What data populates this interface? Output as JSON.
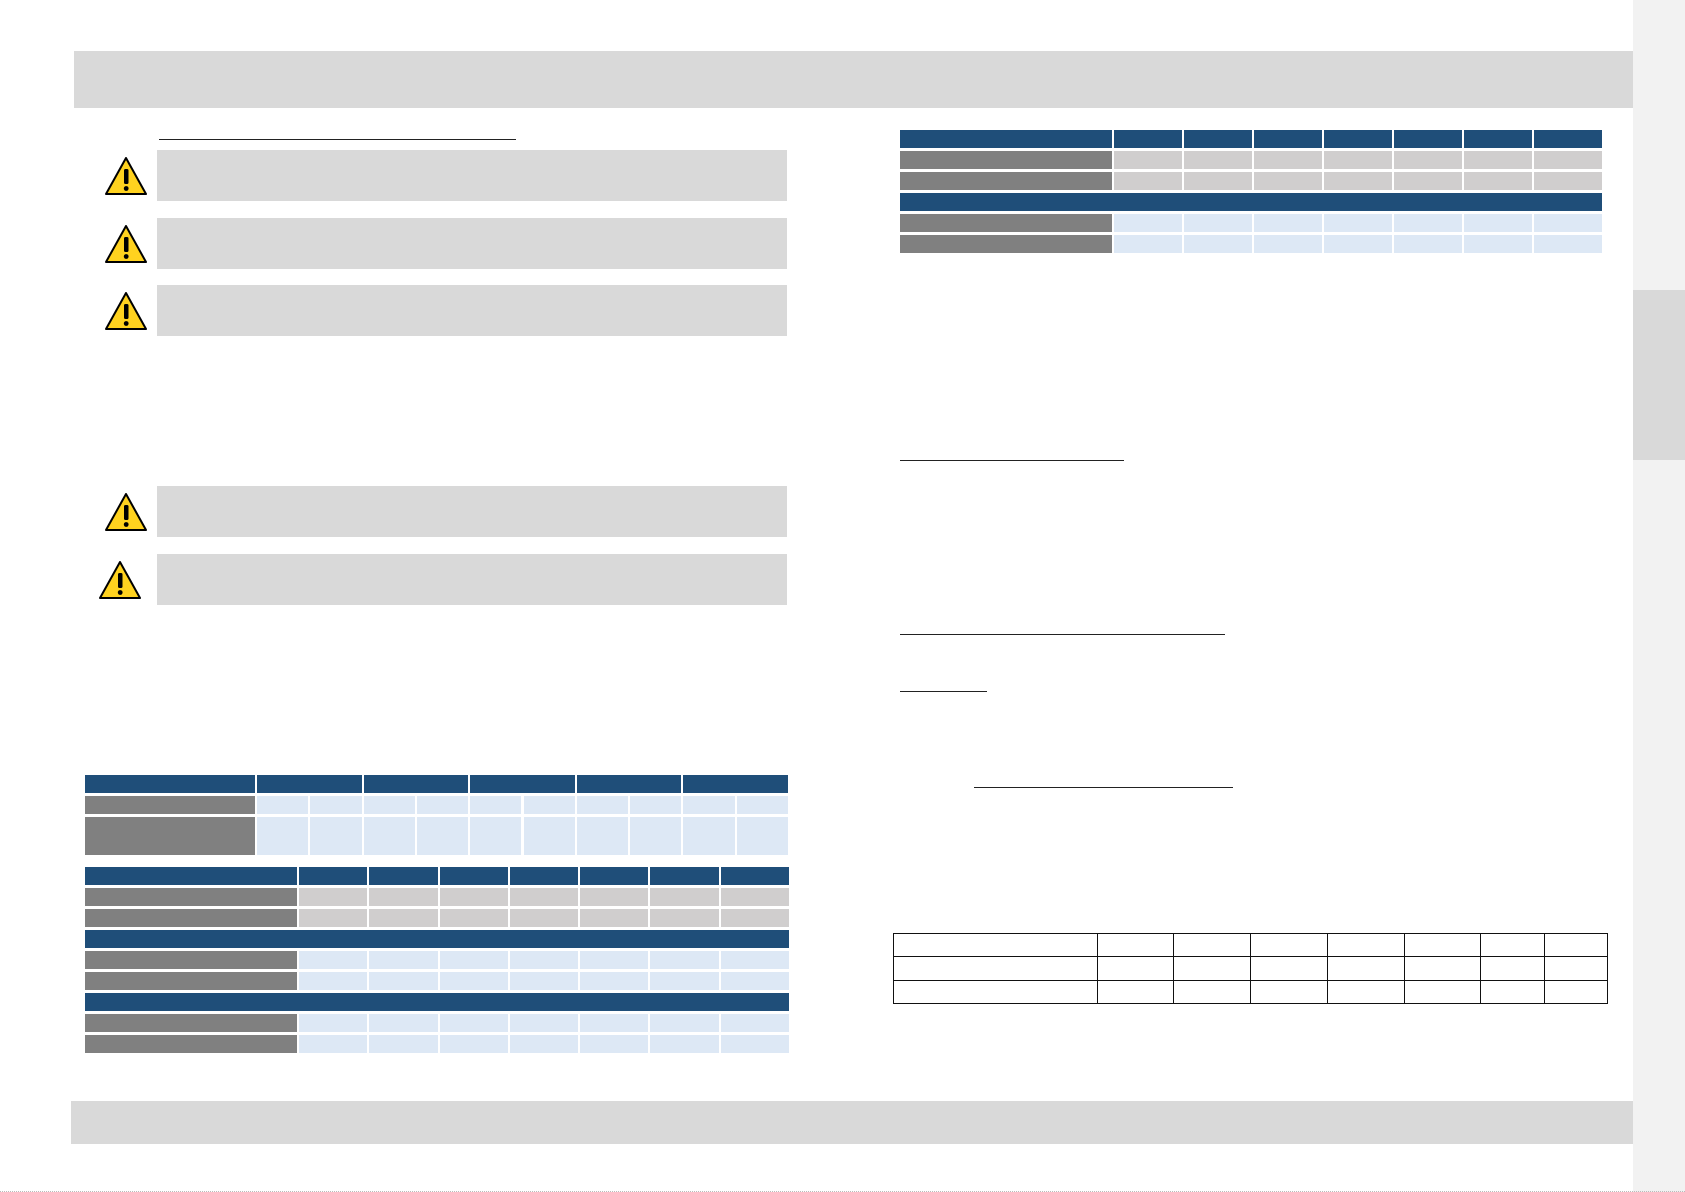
{
  "page": {
    "header_band": "",
    "footer_band": ""
  },
  "left": {
    "section_heading": "",
    "warnings": [
      {
        "icon": "warning-triangle-icon",
        "text": ""
      },
      {
        "icon": "warning-triangle-icon",
        "text": ""
      },
      {
        "icon": "warning-triangle-icon",
        "text": ""
      },
      {
        "icon": "warning-triangle-icon",
        "text": ""
      },
      {
        "icon": "warning-triangle-icon",
        "text": ""
      }
    ]
  },
  "right": {
    "headings": [
      "",
      "",
      "",
      ""
    ]
  },
  "colors": {
    "header_blue": "#1f4e79",
    "label_grey": "#808080",
    "cell_grey": "#d0cece",
    "cell_blue": "#dde8f5",
    "warning_yellow": "#ffd21f"
  }
}
